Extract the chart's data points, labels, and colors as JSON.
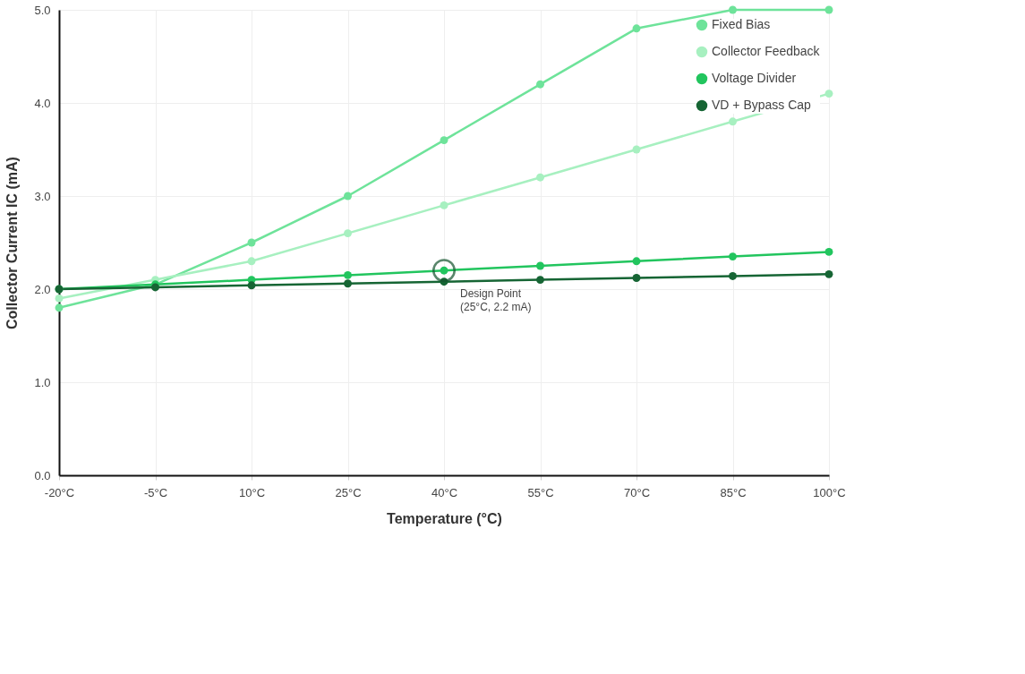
{
  "chart_data": {
    "type": "line",
    "xlabel": "Temperature (°C)",
    "ylabel": "Collector Current IC (mA)",
    "categories": [
      "-20°C",
      "-5°C",
      "10°C",
      "25°C",
      "40°C",
      "55°C",
      "70°C",
      "85°C",
      "100°C"
    ],
    "series": [
      {
        "name": "Fixed Bias",
        "color": "#6ee39a",
        "values": [
          1.8,
          2.05,
          2.5,
          3.0,
          3.6,
          4.2,
          4.8,
          5.0,
          5.0
        ]
      },
      {
        "name": "Collector Feedback",
        "color": "#a7f0c0",
        "values": [
          1.9,
          2.1,
          2.3,
          2.6,
          2.9,
          3.2,
          3.5,
          3.8,
          4.1
        ]
      },
      {
        "name": "Voltage Divider",
        "color": "#22c55e",
        "values": [
          2.0,
          2.05,
          2.1,
          2.15,
          2.2,
          2.25,
          2.3,
          2.35,
          2.4
        ]
      },
      {
        "name": "VD + Bypass Cap",
        "color": "#166534",
        "values": [
          2.0,
          2.02,
          2.04,
          2.06,
          2.08,
          2.1,
          2.12,
          2.14,
          2.16
        ]
      }
    ],
    "ylim": [
      0,
      5
    ],
    "yticks": [
      {
        "value": 0,
        "label": "0.0"
      },
      {
        "value": 1,
        "label": "1.0"
      },
      {
        "value": 2,
        "label": "2.0"
      },
      {
        "value": 3,
        "label": "3.0"
      },
      {
        "value": 4,
        "label": "4.0"
      },
      {
        "value": 5,
        "label": "5.0"
      }
    ],
    "annotations": [
      {
        "text": "Design Point (25°C, 2.2 mA)",
        "x": "40°C",
        "y": 2.2
      }
    ],
    "grid": true,
    "legend": "top right",
    "marker": "circle",
    "line_style": "solid"
  }
}
